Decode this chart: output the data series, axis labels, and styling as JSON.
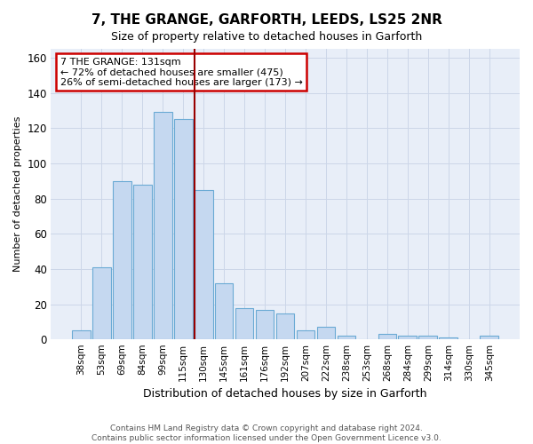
{
  "title": "7, THE GRANGE, GARFORTH, LEEDS, LS25 2NR",
  "subtitle": "Size of property relative to detached houses in Garforth",
  "xlabel": "Distribution of detached houses by size in Garforth",
  "ylabel": "Number of detached properties",
  "categories": [
    "38sqm",
    "53sqm",
    "69sqm",
    "84sqm",
    "99sqm",
    "115sqm",
    "130sqm",
    "145sqm",
    "161sqm",
    "176sqm",
    "192sqm",
    "207sqm",
    "222sqm",
    "238sqm",
    "253sqm",
    "268sqm",
    "284sqm",
    "299sqm",
    "314sqm",
    "330sqm",
    "345sqm"
  ],
  "values": [
    5,
    41,
    90,
    88,
    129,
    125,
    85,
    32,
    18,
    17,
    15,
    5,
    7,
    2,
    0,
    3,
    2,
    2,
    1,
    0,
    2
  ],
  "bar_color": "#c5d8f0",
  "bar_edge_color": "#6aaad4",
  "vline_x_index": 6,
  "vline_color": "#990000",
  "annotation_text": "7 THE GRANGE: 131sqm\n← 72% of detached houses are smaller (475)\n26% of semi-detached houses are larger (173) →",
  "annotation_box_color": "#ffffff",
  "annotation_box_edge": "#cc0000",
  "ylim": [
    0,
    165
  ],
  "yticks": [
    0,
    20,
    40,
    60,
    80,
    100,
    120,
    140,
    160
  ],
  "grid_color": "#ccd6e8",
  "bg_color": "#e8eef8",
  "footer1": "Contains HM Land Registry data © Crown copyright and database right 2024.",
  "footer2": "Contains public sector information licensed under the Open Government Licence v3.0."
}
